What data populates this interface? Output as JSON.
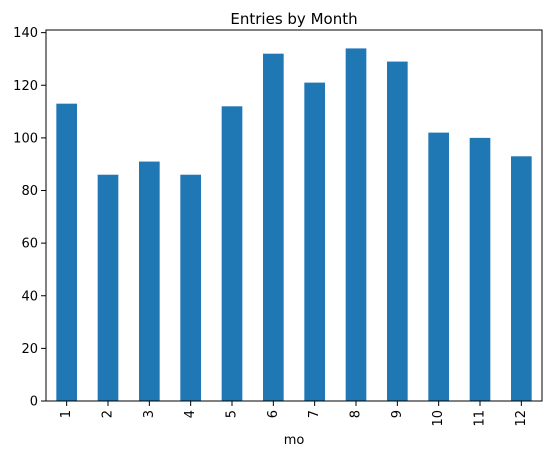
{
  "chart_data": {
    "type": "bar",
    "title": "Entries by Month",
    "xlabel": "mo",
    "ylabel": "",
    "categories": [
      "1",
      "2",
      "3",
      "4",
      "5",
      "6",
      "7",
      "8",
      "9",
      "10",
      "11",
      "12"
    ],
    "values": [
      113,
      86,
      91,
      86,
      112,
      132,
      121,
      134,
      129,
      102,
      100,
      93
    ],
    "ylim": [
      0,
      141
    ],
    "yticks": [
      0,
      20,
      40,
      60,
      80,
      100,
      120,
      140
    ],
    "bar_color": "#1f77b4",
    "grid": false,
    "legend": "none"
  }
}
